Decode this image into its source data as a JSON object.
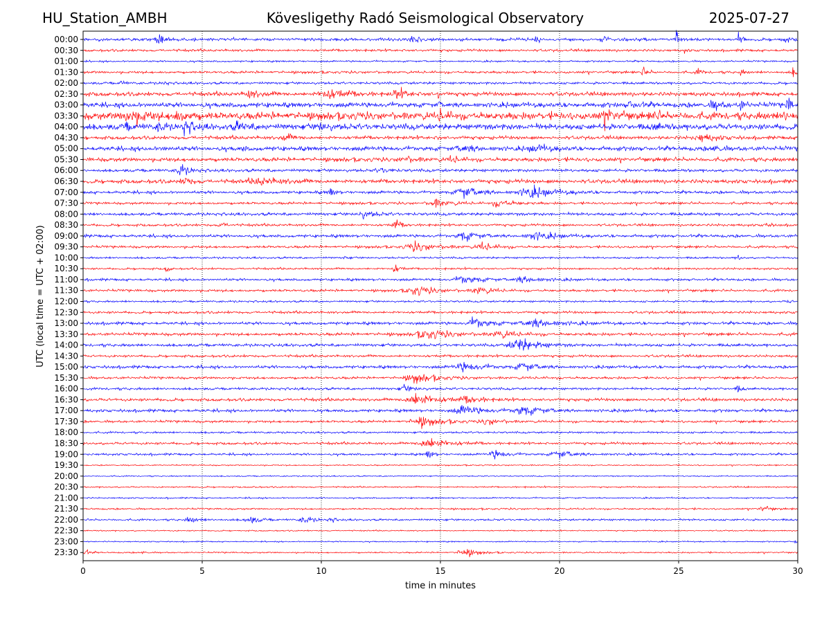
{
  "header": {
    "station": "HU_Station_AMBH",
    "observatory": "Kövesligethy Radó Seismological Observatory",
    "date": "2025-07-27"
  },
  "chart_data": {
    "type": "line",
    "title": "Kövesligethy Radó Seismological Observatory",
    "xlabel": "time in minutes",
    "ylabel": "UTC (local time = UTC + 02:00)",
    "xlim": [
      0,
      30
    ],
    "xticks": [
      0,
      5,
      10,
      15,
      20,
      25,
      30
    ],
    "grid": "vertical dotted lines at 5-minute intervals",
    "row_labels": [
      "00:00",
      "00:30",
      "01:00",
      "01:30",
      "02:00",
      "02:30",
      "03:00",
      "03:30",
      "04:00",
      "04:30",
      "05:00",
      "05:30",
      "06:00",
      "06:30",
      "07:00",
      "07:30",
      "08:00",
      "08:30",
      "09:00",
      "09:30",
      "10:00",
      "10:30",
      "11:00",
      "11:30",
      "12:00",
      "12:30",
      "13:00",
      "13:30",
      "14:00",
      "14:30",
      "15:00",
      "15:30",
      "16:00",
      "16:30",
      "17:00",
      "17:30",
      "18:00",
      "18:30",
      "19:00",
      "19:30",
      "20:00",
      "20:30",
      "21:00",
      "21:30",
      "22:00",
      "22:30",
      "23:00",
      "23:30"
    ],
    "trace_colors": [
      "#0000ff",
      "#ff0000"
    ],
    "noise_level": [
      0.6,
      0.5,
      0.35,
      0.5,
      0.5,
      0.8,
      1.0,
      1.5,
      1.2,
      0.7,
      0.9,
      0.8,
      0.6,
      0.8,
      0.6,
      0.5,
      0.6,
      0.5,
      0.6,
      0.5,
      0.4,
      0.4,
      0.5,
      0.5,
      0.4,
      0.5,
      0.6,
      0.6,
      0.6,
      0.5,
      0.6,
      0.5,
      0.5,
      0.6,
      0.6,
      0.5,
      0.4,
      0.5,
      0.45,
      0.25,
      0.25,
      0.3,
      0.3,
      0.35,
      0.4,
      0.25,
      0.25,
      0.3
    ],
    "events": [
      {
        "row": 0,
        "minute": 3.2,
        "amplitude": 1.6,
        "duration": 0.6
      },
      {
        "row": 0,
        "minute": 9.3,
        "amplitude": 1.8,
        "duration": 0.15
      },
      {
        "row": 0,
        "minute": 13.8,
        "amplitude": 1.5,
        "duration": 0.6
      },
      {
        "row": 0,
        "minute": 19.0,
        "amplitude": 2.0,
        "duration": 0.2
      },
      {
        "row": 0,
        "minute": 21.8,
        "amplitude": 3.0,
        "duration": 0.25
      },
      {
        "row": 0,
        "minute": 24.9,
        "amplitude": 2.6,
        "duration": 0.2
      },
      {
        "row": 0,
        "minute": 27.5,
        "amplitude": 2.6,
        "duration": 0.2
      },
      {
        "row": 0,
        "minute": 29.4,
        "amplitude": 1.2,
        "duration": 0.4
      },
      {
        "row": 1,
        "minute": 25.2,
        "amplitude": 1.2,
        "duration": 0.2
      },
      {
        "row": 3,
        "minute": 23.5,
        "amplitude": 1.6,
        "duration": 0.4
      },
      {
        "row": 3,
        "minute": 25.8,
        "amplitude": 1.2,
        "duration": 0.4
      },
      {
        "row": 3,
        "minute": 27.6,
        "amplitude": 1.2,
        "duration": 0.3
      },
      {
        "row": 3,
        "minute": 29.8,
        "amplitude": 1.6,
        "duration": 0.3
      },
      {
        "row": 4,
        "minute": 1.6,
        "amplitude": 1.6,
        "duration": 0.2
      },
      {
        "row": 4,
        "minute": 3.4,
        "amplitude": 1.2,
        "duration": 0.2
      },
      {
        "row": 5,
        "minute": 7.0,
        "amplitude": 1.4,
        "duration": 1.0
      },
      {
        "row": 5,
        "minute": 10.3,
        "amplitude": 2.0,
        "duration": 1.5
      },
      {
        "row": 5,
        "minute": 13.2,
        "amplitude": 1.6,
        "duration": 1.0
      },
      {
        "row": 5,
        "minute": 14.9,
        "amplitude": 2.4,
        "duration": 0.1
      },
      {
        "row": 6,
        "minute": 14.9,
        "amplitude": 3.0,
        "duration": 0.1
      },
      {
        "row": 6,
        "minute": 23.0,
        "amplitude": 1.3,
        "duration": 0.8
      },
      {
        "row": 6,
        "minute": 26.5,
        "amplitude": 1.8,
        "duration": 0.6
      },
      {
        "row": 6,
        "minute": 27.6,
        "amplitude": 2.0,
        "duration": 0.3
      },
      {
        "row": 6,
        "minute": 29.6,
        "amplitude": 2.6,
        "duration": 0.5
      },
      {
        "row": 7,
        "minute": 2.0,
        "amplitude": 2.4,
        "duration": 1.4
      },
      {
        "row": 7,
        "minute": 4.0,
        "amplitude": 1.6,
        "duration": 1.0
      },
      {
        "row": 7,
        "minute": 15.0,
        "amplitude": 1.6,
        "duration": 0.5
      },
      {
        "row": 7,
        "minute": 22.0,
        "amplitude": 2.6,
        "duration": 0.7
      },
      {
        "row": 7,
        "minute": 24.0,
        "amplitude": 2.2,
        "duration": 0.3
      },
      {
        "row": 7,
        "minute": 29.5,
        "amplitude": 1.6,
        "duration": 0.6
      },
      {
        "row": 8,
        "minute": 1.8,
        "amplitude": 1.5,
        "duration": 0.4
      },
      {
        "row": 8,
        "minute": 3.2,
        "amplitude": 1.8,
        "duration": 0.5
      },
      {
        "row": 8,
        "minute": 4.3,
        "amplitude": 2.8,
        "duration": 0.6
      },
      {
        "row": 8,
        "minute": 6.5,
        "amplitude": 1.4,
        "duration": 0.8
      },
      {
        "row": 8,
        "minute": 10.0,
        "amplitude": 1.2,
        "duration": 0.8
      },
      {
        "row": 8,
        "minute": 24.0,
        "amplitude": 1.2,
        "duration": 0.5
      },
      {
        "row": 9,
        "minute": 8.5,
        "amplitude": 1.2,
        "duration": 0.8
      },
      {
        "row": 9,
        "minute": 26.0,
        "amplitude": 1.5,
        "duration": 1.2
      },
      {
        "row": 9,
        "minute": 14.9,
        "amplitude": 1.8,
        "duration": 0.1
      },
      {
        "row": 10,
        "minute": 3.4,
        "amplitude": 1.2,
        "duration": 0.2
      },
      {
        "row": 10,
        "minute": 6.7,
        "amplitude": 1.3,
        "duration": 0.15
      },
      {
        "row": 10,
        "minute": 16.0,
        "amplitude": 1.2,
        "duration": 1.2
      },
      {
        "row": 10,
        "minute": 19.0,
        "amplitude": 1.2,
        "duration": 1.2
      },
      {
        "row": 10,
        "minute": 26.5,
        "amplitude": 1.8,
        "duration": 0.4
      },
      {
        "row": 11,
        "minute": 13.5,
        "amplitude": 1.0,
        "duration": 1.0
      },
      {
        "row": 11,
        "minute": 15.5,
        "amplitude": 1.2,
        "duration": 0.6
      },
      {
        "row": 12,
        "minute": 4.1,
        "amplitude": 2.4,
        "duration": 0.7
      },
      {
        "row": 12,
        "minute": 12.5,
        "amplitude": 0.9,
        "duration": 0.8
      },
      {
        "row": 13,
        "minute": 4.3,
        "amplitude": 1.6,
        "duration": 0.6
      },
      {
        "row": 13,
        "minute": 7.5,
        "amplitude": 1.2,
        "duration": 2.0
      },
      {
        "row": 14,
        "minute": 10.4,
        "amplitude": 1.8,
        "duration": 0.4
      },
      {
        "row": 14,
        "minute": 16.0,
        "amplitude": 2.2,
        "duration": 1.4
      },
      {
        "row": 14,
        "minute": 18.8,
        "amplitude": 2.0,
        "duration": 2.0
      },
      {
        "row": 15,
        "minute": 14.8,
        "amplitude": 1.6,
        "duration": 1.2
      },
      {
        "row": 15,
        "minute": 17.5,
        "amplitude": 1.4,
        "duration": 1.2
      },
      {
        "row": 16,
        "minute": 11.8,
        "amplitude": 1.3,
        "duration": 1.0
      },
      {
        "row": 17,
        "minute": 5.8,
        "amplitude": 1.2,
        "duration": 0.4
      },
      {
        "row": 17,
        "minute": 13.1,
        "amplitude": 2.0,
        "duration": 0.5
      },
      {
        "row": 17,
        "minute": 28.7,
        "amplitude": 1.2,
        "duration": 0.3
      },
      {
        "row": 18,
        "minute": 16.0,
        "amplitude": 1.8,
        "duration": 1.2
      },
      {
        "row": 18,
        "minute": 19.0,
        "amplitude": 1.5,
        "duration": 1.6
      },
      {
        "row": 19,
        "minute": 14.0,
        "amplitude": 1.6,
        "duration": 1.8
      },
      {
        "row": 19,
        "minute": 16.8,
        "amplitude": 1.5,
        "duration": 1.0
      },
      {
        "row": 20,
        "minute": 11.0,
        "amplitude": 1.0,
        "duration": 0.2
      },
      {
        "row": 20,
        "minute": 27.5,
        "amplitude": 1.6,
        "duration": 0.2
      },
      {
        "row": 21,
        "minute": 3.5,
        "amplitude": 1.2,
        "duration": 0.3
      },
      {
        "row": 21,
        "minute": 13.1,
        "amplitude": 2.0,
        "duration": 0.4
      },
      {
        "row": 22,
        "minute": 16.0,
        "amplitude": 1.6,
        "duration": 1.4
      },
      {
        "row": 22,
        "minute": 18.5,
        "amplitude": 1.3,
        "duration": 1.4
      },
      {
        "row": 23,
        "minute": 14.0,
        "amplitude": 1.6,
        "duration": 1.6
      },
      {
        "row": 23,
        "minute": 16.6,
        "amplitude": 1.6,
        "duration": 1.0
      },
      {
        "row": 24,
        "minute": 29.6,
        "amplitude": 1.0,
        "duration": 0.2
      },
      {
        "row": 26,
        "minute": 16.5,
        "amplitude": 2.0,
        "duration": 1.2
      },
      {
        "row": 26,
        "minute": 19.0,
        "amplitude": 1.6,
        "duration": 2.0
      },
      {
        "row": 27,
        "minute": 14.5,
        "amplitude": 1.6,
        "duration": 2.0
      },
      {
        "row": 27,
        "minute": 17.5,
        "amplitude": 1.3,
        "duration": 1.4
      },
      {
        "row": 28,
        "minute": 18.3,
        "amplitude": 2.6,
        "duration": 1.6
      },
      {
        "row": 30,
        "minute": 16.0,
        "amplitude": 1.6,
        "duration": 1.6
      },
      {
        "row": 30,
        "minute": 18.5,
        "amplitude": 1.6,
        "duration": 1.2
      },
      {
        "row": 31,
        "minute": 14.0,
        "amplitude": 1.6,
        "duration": 1.8
      },
      {
        "row": 32,
        "minute": 13.5,
        "amplitude": 1.2,
        "duration": 0.8
      },
      {
        "row": 32,
        "minute": 27.5,
        "amplitude": 1.4,
        "duration": 0.3
      },
      {
        "row": 33,
        "minute": 14.0,
        "amplitude": 2.6,
        "duration": 1.8
      },
      {
        "row": 33,
        "minute": 16.2,
        "amplitude": 1.2,
        "duration": 1.2
      },
      {
        "row": 34,
        "minute": 16.0,
        "amplitude": 1.8,
        "duration": 1.6
      },
      {
        "row": 34,
        "minute": 18.5,
        "amplitude": 1.8,
        "duration": 1.6
      },
      {
        "row": 35,
        "minute": 14.2,
        "amplitude": 1.8,
        "duration": 1.6
      },
      {
        "row": 35,
        "minute": 17.0,
        "amplitude": 1.3,
        "duration": 1.0
      },
      {
        "row": 37,
        "minute": 14.5,
        "amplitude": 2.4,
        "duration": 1.6
      },
      {
        "row": 38,
        "minute": 14.5,
        "amplitude": 2.2,
        "duration": 0.4
      },
      {
        "row": 38,
        "minute": 17.3,
        "amplitude": 1.6,
        "duration": 1.0
      },
      {
        "row": 38,
        "minute": 20.0,
        "amplitude": 1.4,
        "duration": 1.4
      },
      {
        "row": 41,
        "minute": 7.2,
        "amplitude": 1.2,
        "duration": 0.15
      },
      {
        "row": 43,
        "minute": 28.5,
        "amplitude": 1.2,
        "duration": 0.6
      },
      {
        "row": 44,
        "minute": 4.5,
        "amplitude": 1.0,
        "duration": 0.8
      },
      {
        "row": 44,
        "minute": 7.0,
        "amplitude": 1.6,
        "duration": 0.8
      },
      {
        "row": 44,
        "minute": 9.3,
        "amplitude": 1.4,
        "duration": 0.8
      },
      {
        "row": 44,
        "minute": 10.4,
        "amplitude": 1.2,
        "duration": 0.3
      },
      {
        "row": 46,
        "minute": 29.9,
        "amplitude": 1.6,
        "duration": 0.2
      },
      {
        "row": 47,
        "minute": 0.1,
        "amplitude": 1.4,
        "duration": 0.3
      },
      {
        "row": 47,
        "minute": 2.5,
        "amplitude": 1.0,
        "duration": 0.2
      },
      {
        "row": 47,
        "minute": 16.0,
        "amplitude": 1.8,
        "duration": 1.0
      }
    ]
  }
}
